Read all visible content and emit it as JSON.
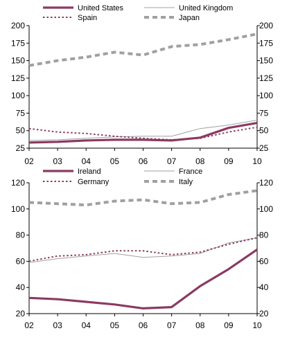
{
  "chart_data": [
    {
      "type": "line",
      "title": "",
      "xlabel": "",
      "ylabel": "",
      "x": [
        "02",
        "03",
        "04",
        "05",
        "06",
        "07",
        "08",
        "09",
        "10"
      ],
      "ylim": [
        25,
        200
      ],
      "yticks": [
        "200",
        "175",
        "150",
        "125",
        "100",
        "75",
        "50",
        "25"
      ],
      "ytick_values": [
        200,
        175,
        150,
        125,
        100,
        75,
        50,
        25
      ],
      "grid": false,
      "legend_placement": "top",
      "series": [
        {
          "name": "United States",
          "style": "solid-thick",
          "color": "#8b3a62",
          "values": [
            33,
            34,
            36,
            37,
            37,
            36,
            40,
            54,
            61
          ]
        },
        {
          "name": "United Kingdom",
          "style": "solid-thin",
          "color": "#a0a0a0",
          "values": [
            36,
            37,
            39,
            41,
            42,
            42,
            53,
            58,
            65
          ]
        },
        {
          "name": "Spain",
          "style": "dotted",
          "color": "#8b3a62",
          "values": [
            53,
            48,
            46,
            42,
            39,
            37,
            39,
            48,
            55
          ]
        },
        {
          "name": "Japan",
          "style": "dashed-thick",
          "color": "#a0a0a0",
          "values": [
            143,
            150,
            155,
            162,
            158,
            170,
            173,
            180,
            188
          ]
        }
      ]
    },
    {
      "type": "line",
      "title": "",
      "xlabel": "",
      "ylabel": "",
      "x": [
        "02",
        "03",
        "04",
        "05",
        "06",
        "07",
        "08",
        "09",
        "10"
      ],
      "ylim": [
        20,
        120
      ],
      "yticks": [
        "120",
        "100",
        "80",
        "60",
        "40",
        "20"
      ],
      "ytick_values": [
        120,
        100,
        80,
        60,
        40,
        20
      ],
      "grid": false,
      "legend_placement": "top",
      "series": [
        {
          "name": "Ireland",
          "style": "solid-thick",
          "color": "#8b3a62",
          "values": [
            32,
            31,
            29,
            27,
            24,
            25,
            41,
            54,
            69
          ]
        },
        {
          "name": "France",
          "style": "solid-thin",
          "color": "#a0a0a0",
          "values": [
            59,
            62,
            64,
            66,
            63,
            64,
            66,
            74,
            78
          ]
        },
        {
          "name": "Germany",
          "style": "dotted",
          "color": "#8b3a62",
          "values": [
            60,
            64,
            65,
            68,
            68,
            65,
            67,
            73,
            78
          ]
        },
        {
          "name": "Italy",
          "style": "dashed-thick",
          "color": "#a0a0a0",
          "values": [
            105,
            104,
            103,
            106,
            107,
            104,
            105,
            111,
            114
          ]
        }
      ]
    }
  ]
}
